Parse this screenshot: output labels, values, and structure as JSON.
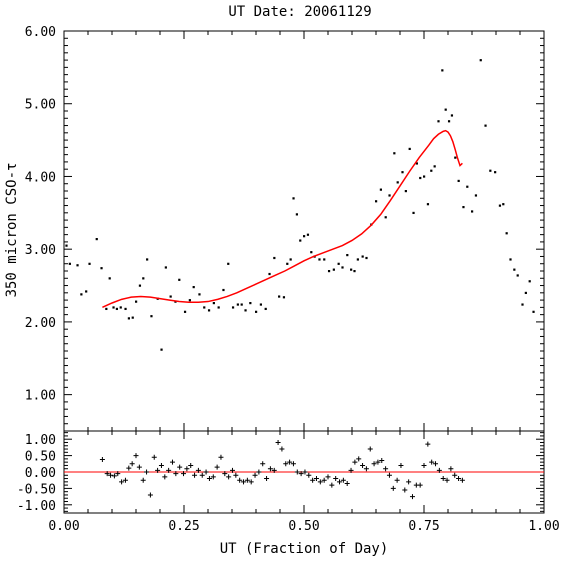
{
  "chart_data": [
    {
      "type": "scatter",
      "title": "UT Date: 20061129",
      "xlabel": "",
      "ylabel": "350 micron CSO-τ",
      "xlim": [
        0.0,
        1.0
      ],
      "ylim": [
        0.5,
        6.0
      ],
      "yticks": [
        1.0,
        2.0,
        3.0,
        4.0,
        5.0,
        6.0
      ],
      "ytick_labels": [
        "1.00",
        "2.00",
        "3.00",
        "4.00",
        "5.00",
        "6.00"
      ],
      "grid": false,
      "series": [
        {
          "kind": "points",
          "color": "#000000",
          "x": [
            0.005,
            0.012,
            0.028,
            0.036,
            0.046,
            0.053,
            0.068,
            0.078,
            0.088,
            0.095,
            0.103,
            0.11,
            0.118,
            0.128,
            0.135,
            0.143,
            0.15,
            0.158,
            0.165,
            0.173,
            0.182,
            0.195,
            0.203,
            0.212,
            0.222,
            0.232,
            0.24,
            0.252,
            0.262,
            0.27,
            0.282,
            0.292,
            0.302,
            0.312,
            0.322,
            0.332,
            0.342,
            0.352,
            0.362,
            0.37,
            0.378,
            0.388,
            0.4,
            0.41,
            0.42,
            0.428,
            0.438,
            0.448,
            0.458,
            0.465,
            0.472,
            0.478,
            0.485,
            0.492,
            0.5,
            0.508,
            0.515,
            0.522,
            0.532,
            0.542,
            0.552,
            0.562,
            0.572,
            0.58,
            0.59,
            0.598,
            0.605,
            0.612,
            0.622,
            0.63,
            0.64,
            0.65,
            0.66,
            0.67,
            0.678,
            0.688,
            0.695,
            0.705,
            0.712,
            0.72,
            0.728,
            0.735,
            0.742,
            0.75,
            0.758,
            0.765,
            0.772,
            0.78,
            0.788,
            0.795,
            0.802,
            0.808,
            0.815,
            0.822,
            0.832,
            0.84,
            0.85,
            0.858,
            0.868,
            0.878,
            0.888,
            0.898,
            0.908,
            0.915,
            0.922,
            0.93,
            0.938,
            0.945,
            0.955,
            0.962,
            0.97,
            0.978
          ],
          "y": [
            3.05,
            2.8,
            2.78,
            2.38,
            2.42,
            2.8,
            3.14,
            2.74,
            2.18,
            2.6,
            2.2,
            2.18,
            2.2,
            2.18,
            2.05,
            2.06,
            2.28,
            2.5,
            2.6,
            2.86,
            2.08,
            2.32,
            1.62,
            2.75,
            2.35,
            2.28,
            2.58,
            2.14,
            2.3,
            2.48,
            2.38,
            2.2,
            2.16,
            2.26,
            2.2,
            2.44,
            2.8,
            2.2,
            2.24,
            2.24,
            2.16,
            2.26,
            2.14,
            2.24,
            2.18,
            2.66,
            2.88,
            2.35,
            2.34,
            2.8,
            2.86,
            3.7,
            3.48,
            3.12,
            3.18,
            3.2,
            2.96,
            2.9,
            2.86,
            2.86,
            2.7,
            2.72,
            2.8,
            2.75,
            2.92,
            2.72,
            2.7,
            2.86,
            2.9,
            2.88,
            3.34,
            3.66,
            3.82,
            3.44,
            3.74,
            4.32,
            3.92,
            4.06,
            3.8,
            4.38,
            3.5,
            4.18,
            3.98,
            4.0,
            3.62,
            4.08,
            4.14,
            4.76,
            5.46,
            4.92,
            4.76,
            4.84,
            4.26,
            3.94,
            3.58,
            3.86,
            3.52,
            3.74,
            5.6,
            4.7,
            4.08,
            4.06,
            3.6,
            3.62,
            3.22,
            2.86,
            2.72,
            2.64,
            2.24,
            2.4,
            2.56,
            2.14
          ]
        },
        {
          "kind": "fit",
          "color": "#ff0000",
          "x": [
            0.08,
            0.1,
            0.12,
            0.14,
            0.16,
            0.18,
            0.2,
            0.22,
            0.24,
            0.26,
            0.28,
            0.3,
            0.32,
            0.34,
            0.36,
            0.38,
            0.4,
            0.42,
            0.44,
            0.46,
            0.48,
            0.5,
            0.52,
            0.54,
            0.56,
            0.58,
            0.6,
            0.62,
            0.64,
            0.66,
            0.68,
            0.7,
            0.72,
            0.74,
            0.76,
            0.77,
            0.78,
            0.79,
            0.795,
            0.8,
            0.805,
            0.81,
            0.815,
            0.82,
            0.825,
            0.83
          ],
          "y": [
            2.2,
            2.26,
            2.31,
            2.34,
            2.35,
            2.34,
            2.32,
            2.3,
            2.28,
            2.27,
            2.27,
            2.28,
            2.31,
            2.35,
            2.4,
            2.46,
            2.52,
            2.58,
            2.64,
            2.7,
            2.77,
            2.84,
            2.9,
            2.95,
            3.0,
            3.05,
            3.12,
            3.21,
            3.33,
            3.48,
            3.67,
            3.87,
            4.07,
            4.26,
            4.43,
            4.52,
            4.58,
            4.62,
            4.63,
            4.61,
            4.56,
            4.48,
            4.37,
            4.25,
            4.15,
            4.18
          ]
        }
      ]
    },
    {
      "type": "scatter",
      "title": "",
      "xlabel": "UT (Fraction of Day)",
      "ylabel": "",
      "xlim": [
        0.0,
        1.0
      ],
      "ylim": [
        -1.25,
        1.25
      ],
      "xticks": [
        0.0,
        0.25,
        0.5,
        0.75,
        1.0
      ],
      "xtick_labels": [
        "0.00",
        "0.25",
        "0.50",
        "0.75",
        "1.00"
      ],
      "yticks": [
        1.0,
        0.5,
        0.0,
        -0.5,
        -1.0
      ],
      "ytick_labels": [
        "1.00",
        "0.50",
        "0.00",
        "-0.50",
        "-1.00"
      ],
      "grid": false,
      "series": [
        {
          "kind": "residual-points",
          "color": "#000000",
          "x": [
            0.08,
            0.09,
            0.097,
            0.105,
            0.112,
            0.12,
            0.128,
            0.135,
            0.142,
            0.15,
            0.157,
            0.165,
            0.172,
            0.18,
            0.188,
            0.195,
            0.203,
            0.21,
            0.218,
            0.226,
            0.233,
            0.241,
            0.249,
            0.256,
            0.264,
            0.272,
            0.28,
            0.288,
            0.296,
            0.303,
            0.311,
            0.319,
            0.327,
            0.335,
            0.343,
            0.351,
            0.358,
            0.366,
            0.374,
            0.382,
            0.39,
            0.398,
            0.406,
            0.414,
            0.422,
            0.43,
            0.438,
            0.446,
            0.454,
            0.462,
            0.47,
            0.478,
            0.486,
            0.494,
            0.502,
            0.51,
            0.518,
            0.526,
            0.534,
            0.542,
            0.55,
            0.558,
            0.566,
            0.574,
            0.582,
            0.59,
            0.598,
            0.606,
            0.614,
            0.622,
            0.63,
            0.638,
            0.646,
            0.654,
            0.662,
            0.67,
            0.678,
            0.686,
            0.694,
            0.702,
            0.71,
            0.718,
            0.726,
            0.734,
            0.742,
            0.75,
            0.758,
            0.766,
            0.774,
            0.782,
            0.79,
            0.798,
            0.806,
            0.814,
            0.822,
            0.83
          ],
          "y": [
            0.38,
            -0.05,
            -0.1,
            -0.12,
            -0.05,
            -0.3,
            -0.25,
            0.12,
            0.25,
            0.5,
            0.15,
            -0.25,
            0.0,
            -0.7,
            0.45,
            0.05,
            0.2,
            -0.15,
            0.05,
            0.3,
            -0.05,
            0.15,
            -0.05,
            0.1,
            0.2,
            -0.1,
            0.05,
            -0.1,
            0.0,
            -0.2,
            -0.15,
            0.15,
            0.45,
            -0.05,
            -0.15,
            0.05,
            -0.1,
            -0.25,
            -0.3,
            -0.25,
            -0.3,
            -0.1,
            0.0,
            0.25,
            -0.2,
            0.1,
            0.05,
            0.9,
            0.7,
            0.25,
            0.3,
            0.25,
            0.0,
            -0.05,
            0.0,
            -0.1,
            -0.25,
            -0.2,
            -0.3,
            -0.25,
            -0.15,
            -0.4,
            -0.2,
            -0.3,
            -0.25,
            -0.35,
            0.05,
            0.3,
            0.4,
            0.2,
            0.1,
            0.7,
            0.25,
            0.3,
            0.35,
            0.1,
            -0.1,
            -0.5,
            -0.25,
            0.2,
            -0.55,
            -0.3,
            -0.75,
            -0.4,
            -0.4,
            0.2,
            0.85,
            0.3,
            0.25,
            0.05,
            -0.2,
            -0.25,
            0.1,
            -0.1,
            -0.2,
            -0.25
          ]
        },
        {
          "kind": "zero-line",
          "color": "#ff0000",
          "y": 0.0
        }
      ]
    }
  ]
}
